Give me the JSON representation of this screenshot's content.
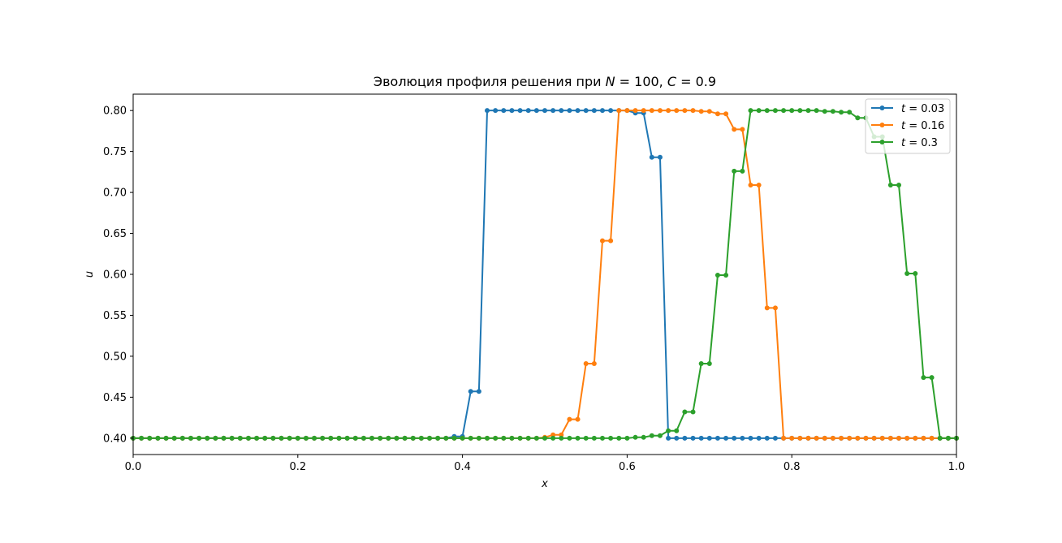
{
  "chart_data": {
    "type": "line",
    "title_parts": [
      "Эволюция профиля решения при ",
      "N",
      " = 100, ",
      "C",
      " = 0.9"
    ],
    "xlabel": "x",
    "ylabel": "u",
    "xlim": [
      0,
      1
    ],
    "ylim": [
      0.38,
      0.82
    ],
    "x_ticks": [
      0.0,
      0.2,
      0.4,
      0.6,
      0.8,
      1.0
    ],
    "x_tick_labels": [
      "0.0",
      "0.2",
      "0.4",
      "0.6",
      "0.8",
      "1.0"
    ],
    "y_ticks": [
      0.4,
      0.45,
      0.5,
      0.55,
      0.6,
      0.65,
      0.7,
      0.75,
      0.8
    ],
    "y_tick_labels": [
      "0.40",
      "0.45",
      "0.50",
      "0.55",
      "0.60",
      "0.65",
      "0.70",
      "0.75",
      "0.80"
    ],
    "grid": false,
    "legend_position": "top-right",
    "x": [
      0.0,
      0.01,
      0.02,
      0.03,
      0.04,
      0.05,
      0.06,
      0.07,
      0.08,
      0.09,
      0.1,
      0.11,
      0.12,
      0.13,
      0.14,
      0.15,
      0.16,
      0.17,
      0.18,
      0.19,
      0.2,
      0.21,
      0.22,
      0.23,
      0.24,
      0.25,
      0.26,
      0.27,
      0.28,
      0.29,
      0.3,
      0.31,
      0.32,
      0.33,
      0.34,
      0.35,
      0.36,
      0.37,
      0.38,
      0.39,
      0.4,
      0.41,
      0.42,
      0.43,
      0.44,
      0.45,
      0.46,
      0.47,
      0.48,
      0.49,
      0.5,
      0.51,
      0.52,
      0.53,
      0.54,
      0.55,
      0.56,
      0.57,
      0.58,
      0.59,
      0.6,
      0.61,
      0.62,
      0.63,
      0.64,
      0.65,
      0.66,
      0.67,
      0.68,
      0.69,
      0.7,
      0.71,
      0.72,
      0.73,
      0.74,
      0.75,
      0.76,
      0.77,
      0.78,
      0.79,
      0.8,
      0.81,
      0.82,
      0.83,
      0.84,
      0.85,
      0.86,
      0.87,
      0.88,
      0.89,
      0.9,
      0.91,
      0.92,
      0.93,
      0.94,
      0.95,
      0.96,
      0.97,
      0.98,
      0.99,
      1.0
    ],
    "series": [
      {
        "name_var": "t",
        "name_value": "= 0.03",
        "color": "#1f77b4",
        "values": [
          0.4,
          0.4,
          0.4,
          0.4,
          0.4,
          0.4,
          0.4,
          0.4,
          0.4,
          0.4,
          0.4,
          0.4,
          0.4,
          0.4,
          0.4,
          0.4,
          0.4,
          0.4,
          0.4,
          0.4,
          0.4,
          0.4,
          0.4,
          0.4,
          0.4,
          0.4,
          0.4,
          0.4,
          0.4,
          0.4,
          0.4,
          0.4,
          0.4,
          0.4,
          0.4,
          0.4,
          0.4,
          0.4,
          0.4,
          0.402,
          0.402,
          0.457,
          0.457,
          0.8,
          0.8,
          0.8,
          0.8,
          0.8,
          0.8,
          0.8,
          0.8,
          0.8,
          0.8,
          0.8,
          0.8,
          0.8,
          0.8,
          0.8,
          0.8,
          0.8,
          0.8,
          0.797,
          0.797,
          0.743,
          0.743,
          0.4,
          0.4,
          0.4,
          0.4,
          0.4,
          0.4,
          0.4,
          0.4,
          0.4,
          0.4,
          0.4,
          0.4,
          0.4,
          0.4,
          0.4,
          0.4,
          0.4,
          0.4,
          0.4,
          0.4,
          0.4,
          0.4,
          0.4,
          0.4,
          0.4,
          0.4,
          0.4,
          0.4,
          0.4,
          0.4,
          0.4,
          0.4,
          0.4,
          0.4,
          0.4,
          0.4
        ]
      },
      {
        "name_var": "t",
        "name_value": "= 0.16",
        "color": "#ff7f0e",
        "values": [
          0.4,
          0.4,
          0.4,
          0.4,
          0.4,
          0.4,
          0.4,
          0.4,
          0.4,
          0.4,
          0.4,
          0.4,
          0.4,
          0.4,
          0.4,
          0.4,
          0.4,
          0.4,
          0.4,
          0.4,
          0.4,
          0.4,
          0.4,
          0.4,
          0.4,
          0.4,
          0.4,
          0.4,
          0.4,
          0.4,
          0.4,
          0.4,
          0.4,
          0.4,
          0.4,
          0.4,
          0.4,
          0.4,
          0.4,
          0.4,
          0.4,
          0.4,
          0.4,
          0.4,
          0.4,
          0.4,
          0.4,
          0.4,
          0.4,
          0.4,
          0.401,
          0.404,
          0.404,
          0.423,
          0.423,
          0.491,
          0.491,
          0.641,
          0.641,
          0.8,
          0.8,
          0.8,
          0.8,
          0.8,
          0.8,
          0.8,
          0.8,
          0.8,
          0.8,
          0.799,
          0.799,
          0.796,
          0.796,
          0.777,
          0.777,
          0.709,
          0.709,
          0.559,
          0.559,
          0.4,
          0.4,
          0.4,
          0.4,
          0.4,
          0.4,
          0.4,
          0.4,
          0.4,
          0.4,
          0.4,
          0.4,
          0.4,
          0.4,
          0.4,
          0.4,
          0.4,
          0.4,
          0.4,
          0.4,
          0.4,
          0.4
        ]
      },
      {
        "name_var": "t",
        "name_value": "= 0.3",
        "color": "#2ca02c",
        "values": [
          0.4,
          0.4,
          0.4,
          0.4,
          0.4,
          0.4,
          0.4,
          0.4,
          0.4,
          0.4,
          0.4,
          0.4,
          0.4,
          0.4,
          0.4,
          0.4,
          0.4,
          0.4,
          0.4,
          0.4,
          0.4,
          0.4,
          0.4,
          0.4,
          0.4,
          0.4,
          0.4,
          0.4,
          0.4,
          0.4,
          0.4,
          0.4,
          0.4,
          0.4,
          0.4,
          0.4,
          0.4,
          0.4,
          0.4,
          0.4,
          0.4,
          0.4,
          0.4,
          0.4,
          0.4,
          0.4,
          0.4,
          0.4,
          0.4,
          0.4,
          0.4,
          0.4,
          0.4,
          0.4,
          0.4,
          0.4,
          0.4,
          0.4,
          0.4,
          0.4,
          0.4,
          0.401,
          0.401,
          0.403,
          0.403,
          0.409,
          0.409,
          0.432,
          0.432,
          0.491,
          0.491,
          0.599,
          0.599,
          0.726,
          0.726,
          0.8,
          0.8,
          0.8,
          0.8,
          0.8,
          0.8,
          0.8,
          0.8,
          0.8,
          0.799,
          0.799,
          0.798,
          0.798,
          0.791,
          0.791,
          0.768,
          0.768,
          0.709,
          0.709,
          0.601,
          0.601,
          0.474,
          0.474,
          0.4,
          0.4,
          0.4
        ]
      }
    ]
  }
}
